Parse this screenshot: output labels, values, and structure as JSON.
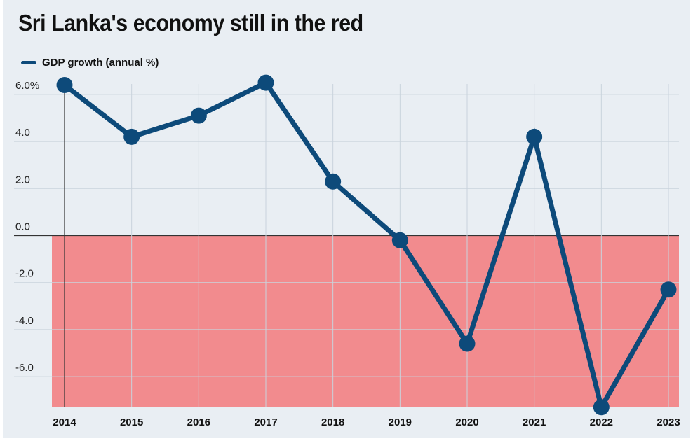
{
  "title": "Sri Lanka's economy still in the red",
  "colors": {
    "line": "#0d4a7a",
    "negative_region": "#f28b8e",
    "background": "#e9eef3",
    "grid": "#c9d3dc"
  },
  "chart_data": {
    "type": "line",
    "title": "Sri Lanka's economy still in the red",
    "xlabel": "",
    "ylabel": "",
    "x": [
      "2014",
      "2015",
      "2016",
      "2017",
      "2018",
      "2019",
      "2020",
      "2021",
      "2022",
      "2023"
    ],
    "series": [
      {
        "name": "GDP growth (annual %)",
        "values": [
          6.4,
          4.2,
          5.1,
          6.5,
          2.3,
          -0.2,
          -4.6,
          4.2,
          -7.3,
          -2.3
        ]
      }
    ],
    "ylim": [
      -7.3,
      6.5
    ],
    "y_ticks": [
      6.0,
      4.0,
      2.0,
      0.0,
      -2.0,
      -4.0,
      -6.0
    ],
    "y_tick_labels": [
      "6.0%",
      "4.0",
      "2.0",
      "0.0",
      "-2.0",
      "-4.0",
      "-6.0"
    ],
    "grid": true,
    "legend_position": "top-left",
    "negative_region_shaded": true
  }
}
